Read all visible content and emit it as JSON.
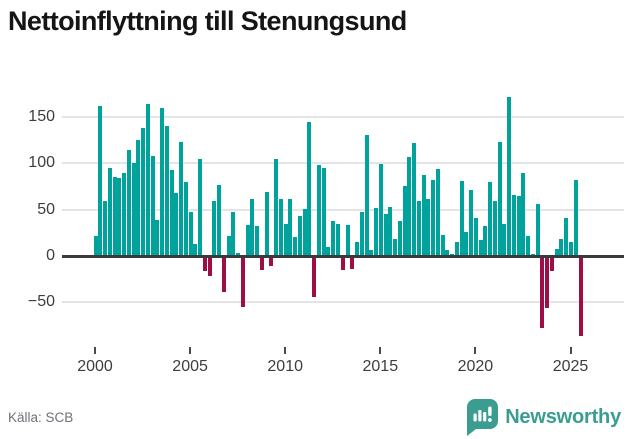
{
  "title": "Nettoinflyttning till Stenungsund",
  "source": "Källa: SCB",
  "branding": {
    "name": "Newsworthy",
    "color": "#3a9d90"
  },
  "colors": {
    "positive_bar": "#00a39b",
    "negative_bar": "#9e0d46",
    "zero_line": "#3a3a3a",
    "gridline": "#e4e4e4",
    "axis_text": "#3d3d3d"
  },
  "chart_data": {
    "type": "bar",
    "title": "Nettoinflyttning till Stenungsund",
    "xlabel": "",
    "ylabel": "",
    "frequency": "quarterly",
    "start_period": "2000-Q1",
    "end_period": "2025-Q3",
    "x_tick_years": [
      2000,
      2005,
      2010,
      2015,
      2020,
      2025
    ],
    "x_tick_labels": [
      "2000",
      "2005",
      "2010",
      "2015",
      "2020",
      "2025"
    ],
    "y_ticks": [
      150,
      100,
      50,
      0,
      -50
    ],
    "y_tick_labels": [
      "150",
      "100",
      "50",
      "0",
      "−50"
    ],
    "ylim": [
      -95,
      175
    ],
    "grid": true,
    "legend": false,
    "values": [
      22,
      162,
      59,
      95,
      85,
      84,
      90,
      114,
      100,
      125,
      138,
      164,
      108,
      39,
      160,
      140,
      93,
      68,
      123,
      80,
      48,
      13,
      105,
      -15,
      -20,
      59,
      77,
      -37,
      22,
      47,
      3,
      -53,
      33,
      62,
      32,
      -13,
      69,
      -9,
      105,
      62,
      34,
      62,
      20,
      43,
      51,
      145,
      -43,
      98,
      95,
      10,
      38,
      35,
      -14,
      33,
      -12,
      15,
      47,
      130,
      6,
      52,
      99,
      45,
      53,
      18,
      38,
      75,
      107,
      122,
      59,
      87,
      61,
      82,
      94,
      23,
      7,
      2,
      15,
      81,
      26,
      71,
      41,
      17,
      32,
      80,
      59,
      123,
      35,
      171,
      66,
      65,
      90,
      22,
      2,
      56,
      -76,
      -54,
      -15,
      8,
      18,
      41,
      15,
      82,
      -85
    ]
  }
}
